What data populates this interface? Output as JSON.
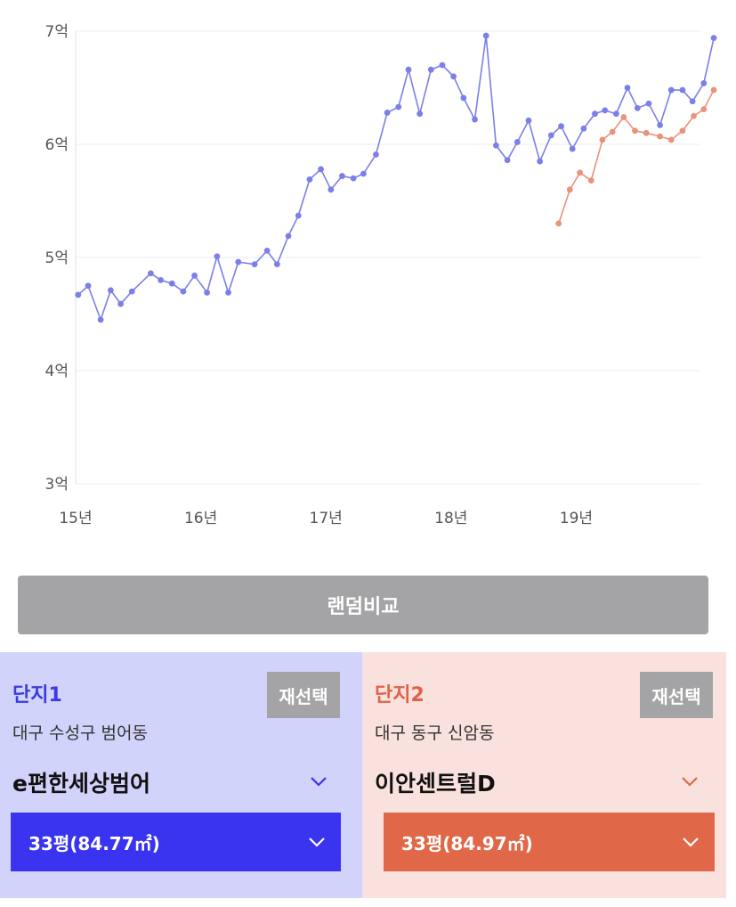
{
  "chart_data": {
    "type": "line",
    "x_ticks": [
      "15년",
      "16년",
      "17년",
      "18년",
      "19년"
    ],
    "y_ticks": [
      "3억",
      "4억",
      "5억",
      "6억",
      "7억"
    ],
    "ylim": [
      3,
      7
    ],
    "xlim": [
      2015.0,
      2020.0
    ],
    "grid": true,
    "series": [
      {
        "color": "#7b7fe8",
        "points": [
          [
            2015.02,
            4.67
          ],
          [
            2015.1,
            4.75
          ],
          [
            2015.2,
            4.45
          ],
          [
            2015.28,
            4.71
          ],
          [
            2015.36,
            4.59
          ],
          [
            2015.45,
            4.7
          ],
          [
            2015.6,
            4.86
          ],
          [
            2015.68,
            4.8
          ],
          [
            2015.77,
            4.77
          ],
          [
            2015.86,
            4.7
          ],
          [
            2015.95,
            4.84
          ],
          [
            2016.05,
            4.69
          ],
          [
            2016.13,
            5.01
          ],
          [
            2016.22,
            4.69
          ],
          [
            2016.3,
            4.96
          ],
          [
            2016.43,
            4.94
          ],
          [
            2016.53,
            5.06
          ],
          [
            2016.61,
            4.94
          ],
          [
            2016.7,
            5.19
          ],
          [
            2016.78,
            5.37
          ],
          [
            2016.87,
            5.69
          ],
          [
            2016.96,
            5.78
          ],
          [
            2017.04,
            5.6
          ],
          [
            2017.13,
            5.72
          ],
          [
            2017.22,
            5.7
          ],
          [
            2017.3,
            5.74
          ],
          [
            2017.4,
            5.91
          ],
          [
            2017.49,
            6.28
          ],
          [
            2017.58,
            6.33
          ],
          [
            2017.66,
            6.66
          ],
          [
            2017.75,
            6.27
          ],
          [
            2017.84,
            6.66
          ],
          [
            2017.93,
            6.7
          ],
          [
            2018.02,
            6.6
          ],
          [
            2018.1,
            6.41
          ],
          [
            2018.19,
            6.22
          ],
          [
            2018.28,
            6.96
          ],
          [
            2018.36,
            5.99
          ],
          [
            2018.45,
            5.86
          ],
          [
            2018.53,
            6.02
          ],
          [
            2018.62,
            6.21
          ],
          [
            2018.71,
            5.85
          ],
          [
            2018.8,
            6.08
          ],
          [
            2018.88,
            6.16
          ],
          [
            2018.97,
            5.96
          ],
          [
            2019.06,
            6.14
          ],
          [
            2019.15,
            6.27
          ],
          [
            2019.23,
            6.3
          ],
          [
            2019.32,
            6.27
          ],
          [
            2019.41,
            6.5
          ],
          [
            2019.49,
            6.32
          ],
          [
            2019.58,
            6.36
          ],
          [
            2019.67,
            6.17
          ],
          [
            2019.76,
            6.48
          ],
          [
            2019.85,
            6.48
          ],
          [
            2019.93,
            6.38
          ],
          [
            2020.02,
            6.54
          ],
          [
            2020.1,
            6.94
          ]
        ]
      },
      {
        "color": "#e9927c",
        "points": [
          [
            2018.86,
            5.3
          ],
          [
            2018.95,
            5.6
          ],
          [
            2019.03,
            5.75
          ],
          [
            2019.12,
            5.68
          ],
          [
            2019.21,
            6.04
          ],
          [
            2019.29,
            6.11
          ],
          [
            2019.38,
            6.24
          ],
          [
            2019.47,
            6.12
          ],
          [
            2019.56,
            6.1
          ],
          [
            2019.67,
            6.07
          ],
          [
            2019.76,
            6.04
          ],
          [
            2019.85,
            6.12
          ],
          [
            2019.94,
            6.25
          ],
          [
            2020.02,
            6.31
          ],
          [
            2020.1,
            6.48
          ]
        ]
      }
    ]
  },
  "random_compare_label": "랜덤비교",
  "complex1": {
    "title": "단지1",
    "reselect_label": "재선택",
    "address": "대구 수성구 범어동",
    "apt_name": "e편한세상범어",
    "size": "33평(84.77㎡)",
    "accent": "#3a33f0"
  },
  "complex2": {
    "title": "단지2",
    "reselect_label": "재선택",
    "address": "대구 동구 신암동",
    "apt_name": "이안센트럴D",
    "size": "33평(84.97㎡)",
    "accent": "#e06848"
  }
}
